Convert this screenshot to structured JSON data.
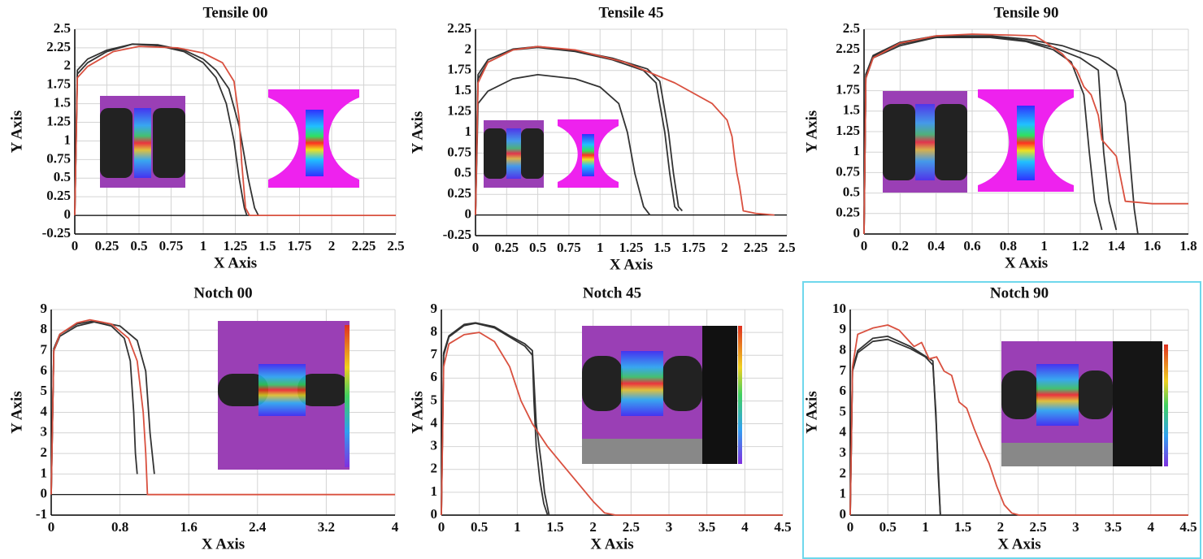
{
  "chart_data": [
    {
      "type": "line",
      "title": "Tensile 00",
      "x_label": "X Axis",
      "y_label": "Y Axis",
      "grid": true,
      "xlim": [
        0,
        2.5
      ],
      "ylim": [
        -0.25,
        2.5
      ],
      "xticks": [
        0,
        0.25,
        0.5,
        0.75,
        1,
        1.25,
        1.5,
        1.75,
        2,
        2.25,
        2.5
      ],
      "yticks": [
        -0.25,
        0,
        0.25,
        0.5,
        0.75,
        1,
        1.25,
        1.5,
        1.75,
        2,
        2.25,
        2.5
      ],
      "series": [
        {
          "color": "#333333",
          "x": [
            0,
            0.02,
            0.1,
            0.25,
            0.45,
            0.65,
            0.85,
            1.0,
            1.1,
            1.18,
            1.24,
            1.28,
            1.32,
            1.34
          ],
          "values": [
            0,
            1.9,
            2.05,
            2.2,
            2.3,
            2.28,
            2.2,
            2.05,
            1.85,
            1.5,
            1.0,
            0.5,
            0.1,
            0
          ]
        },
        {
          "color": "#333333",
          "x": [
            0,
            0.02,
            0.1,
            0.25,
            0.45,
            0.65,
            0.85,
            1.0,
            1.1,
            1.2,
            1.28,
            1.35,
            1.4,
            1.43
          ],
          "values": [
            0,
            1.95,
            2.1,
            2.22,
            2.3,
            2.29,
            2.22,
            2.1,
            1.95,
            1.7,
            1.2,
            0.5,
            0.1,
            0
          ]
        },
        {
          "color": "#d9503f",
          "x": [
            0,
            0.02,
            0.1,
            0.3,
            0.5,
            0.8,
            1.0,
            1.15,
            1.24,
            1.28,
            1.3,
            1.33,
            1.36,
            2.5
          ],
          "values": [
            0,
            1.85,
            2.0,
            2.2,
            2.27,
            2.25,
            2.18,
            2.05,
            1.8,
            1.3,
            0.7,
            0.1,
            0,
            0
          ]
        }
      ]
    },
    {
      "type": "line",
      "title": "Tensile 45",
      "x_label": "X Axis",
      "y_label": "Y Axis",
      "grid": true,
      "xlim": [
        0,
        2.5
      ],
      "ylim": [
        -0.25,
        2.25
      ],
      "xticks": [
        0,
        0.25,
        0.5,
        0.75,
        1,
        1.25,
        1.5,
        1.75,
        2,
        2.25,
        2.5
      ],
      "yticks": [
        -0.25,
        0,
        0.25,
        0.5,
        0.75,
        1,
        1.25,
        1.5,
        1.75,
        2,
        2.25
      ],
      "series": [
        {
          "color": "#333333",
          "x": [
            0,
            0.02,
            0.1,
            0.3,
            0.5,
            0.8,
            1.0,
            1.15,
            1.22,
            1.28,
            1.35,
            1.4
          ],
          "values": [
            0,
            1.35,
            1.5,
            1.65,
            1.7,
            1.65,
            1.55,
            1.35,
            1.0,
            0.5,
            0.1,
            0
          ]
        },
        {
          "color": "#333333",
          "x": [
            0,
            0.02,
            0.1,
            0.3,
            0.5,
            0.8,
            1.1,
            1.35,
            1.45,
            1.52,
            1.56,
            1.6,
            1.63
          ],
          "values": [
            0,
            1.65,
            1.85,
            2.0,
            2.03,
            1.98,
            1.88,
            1.75,
            1.6,
            1.0,
            0.5,
            0.1,
            0.05
          ]
        },
        {
          "color": "#333333",
          "x": [
            0,
            0.02,
            0.1,
            0.3,
            0.5,
            0.8,
            1.1,
            1.38,
            1.48,
            1.55,
            1.59,
            1.63,
            1.66
          ],
          "values": [
            0,
            1.7,
            1.88,
            2.01,
            2.04,
            1.99,
            1.9,
            1.77,
            1.62,
            1.0,
            0.5,
            0.1,
            0.05
          ]
        },
        {
          "color": "#d9503f",
          "x": [
            0,
            0.02,
            0.1,
            0.3,
            0.5,
            0.8,
            1.2,
            1.6,
            1.9,
            2.02,
            2.06,
            2.08,
            2.1,
            2.12,
            2.15,
            2.25,
            2.4
          ],
          "values": [
            0,
            1.6,
            1.85,
            2.0,
            2.04,
            2.0,
            1.85,
            1.6,
            1.35,
            1.15,
            0.95,
            0.7,
            0.5,
            0.35,
            0.05,
            0.02,
            0
          ]
        }
      ]
    },
    {
      "type": "line",
      "title": "Tensile 90",
      "x_label": "X Axis",
      "y_label": "Y Axis",
      "grid": true,
      "xlim": [
        0,
        1.8
      ],
      "ylim": [
        0,
        2.5
      ],
      "xticks": [
        0,
        0.2,
        0.4,
        0.6,
        0.8,
        1,
        1.2,
        1.4,
        1.6,
        1.8
      ],
      "yticks": [
        0,
        0.25,
        0.5,
        0.75,
        1,
        1.25,
        1.5,
        1.75,
        2,
        2.25,
        2.5
      ],
      "series": [
        {
          "color": "#333333",
          "x": [
            0,
            0.01,
            0.05,
            0.2,
            0.4,
            0.7,
            0.9,
            1.05,
            1.15,
            1.22,
            1.25,
            1.28,
            1.32
          ],
          "values": [
            0,
            1.9,
            2.15,
            2.3,
            2.4,
            2.4,
            2.35,
            2.25,
            2.1,
            1.7,
            1.0,
            0.4,
            0.05
          ]
        },
        {
          "color": "#333333",
          "x": [
            0,
            0.01,
            0.05,
            0.2,
            0.4,
            0.7,
            0.9,
            1.05,
            1.2,
            1.3,
            1.33,
            1.36,
            1.4
          ],
          "values": [
            0,
            1.92,
            2.17,
            2.32,
            2.41,
            2.41,
            2.36,
            2.28,
            2.15,
            2.0,
            1.0,
            0.4,
            0.05
          ]
        },
        {
          "color": "#333333",
          "x": [
            0,
            0.01,
            0.05,
            0.2,
            0.4,
            0.7,
            0.9,
            1.1,
            1.3,
            1.4,
            1.45,
            1.48,
            1.5,
            1.52
          ],
          "values": [
            0,
            1.95,
            2.18,
            2.34,
            2.42,
            2.42,
            2.38,
            2.3,
            2.15,
            2.0,
            1.6,
            0.8,
            0.3,
            0
          ]
        },
        {
          "color": "#d9503f",
          "x": [
            0,
            0.01,
            0.05,
            0.2,
            0.4,
            0.6,
            0.8,
            0.95,
            1.0,
            1.1,
            1.18,
            1.22,
            1.26,
            1.3,
            1.32,
            1.4,
            1.45,
            1.6,
            1.8
          ],
          "values": [
            0,
            1.9,
            2.15,
            2.33,
            2.42,
            2.44,
            2.43,
            2.42,
            2.35,
            2.2,
            2.0,
            1.8,
            1.7,
            1.45,
            1.15,
            0.95,
            0.4,
            0.37,
            0.37
          ]
        }
      ]
    },
    {
      "type": "line",
      "title": "Notch 00",
      "x_label": "X Axis",
      "y_label": "Y Axis",
      "grid": true,
      "xlim": [
        0,
        4
      ],
      "ylim": [
        -1,
        9
      ],
      "xticks": [
        0,
        0.8,
        1.6,
        2.4,
        3.2,
        4
      ],
      "yticks": [
        -1,
        0,
        1,
        2,
        3,
        4,
        5,
        6,
        7,
        8,
        9
      ],
      "series": [
        {
          "color": "#333333",
          "x": [
            0,
            0.03,
            0.1,
            0.3,
            0.5,
            0.7,
            0.85,
            0.92,
            0.96,
            0.98,
            1.0
          ],
          "values": [
            0,
            7,
            7.7,
            8.2,
            8.4,
            8.2,
            7.6,
            6.5,
            4,
            2,
            1
          ]
        },
        {
          "color": "#333333",
          "x": [
            0,
            0.03,
            0.1,
            0.3,
            0.5,
            0.8,
            1.0,
            1.1,
            1.15,
            1.2
          ],
          "values": [
            0,
            7.1,
            7.8,
            8.3,
            8.45,
            8.2,
            7.5,
            6,
            3,
            1
          ]
        },
        {
          "color": "#d9503f",
          "x": [
            0,
            0.03,
            0.1,
            0.3,
            0.45,
            0.7,
            0.9,
            1.0,
            1.07,
            1.1,
            1.12,
            4
          ],
          "values": [
            0,
            7,
            7.8,
            8.35,
            8.5,
            8.3,
            7.6,
            6.5,
            4,
            2,
            0,
            0
          ]
        }
      ]
    },
    {
      "type": "line",
      "title": "Notch 45",
      "x_label": "X Axis",
      "y_label": "Y Axis",
      "grid": true,
      "xlim": [
        0,
        4.5
      ],
      "ylim": [
        0,
        9
      ],
      "xticks": [
        0,
        0.5,
        1,
        1.5,
        2,
        2.5,
        3,
        3.5,
        4,
        4.5
      ],
      "yticks": [
        0,
        1,
        2,
        3,
        4,
        5,
        6,
        7,
        8,
        9
      ],
      "series": [
        {
          "color": "#333333",
          "x": [
            0,
            0.03,
            0.1,
            0.3,
            0.45,
            0.7,
            0.9,
            1.1,
            1.2,
            1.22,
            1.25,
            1.3,
            1.35,
            1.4
          ],
          "values": [
            0,
            7,
            7.8,
            8.3,
            8.4,
            8.2,
            7.8,
            7.4,
            7,
            5,
            3,
            1.5,
            0.5,
            0
          ]
        },
        {
          "color": "#333333",
          "x": [
            0,
            0.03,
            0.1,
            0.3,
            0.45,
            0.7,
            0.9,
            1.1,
            1.2,
            1.25,
            1.32,
            1.36,
            1.42
          ],
          "values": [
            0,
            7.1,
            7.85,
            8.35,
            8.42,
            8.25,
            7.85,
            7.5,
            7.2,
            4,
            2.2,
            1,
            0
          ]
        },
        {
          "color": "#d9503f",
          "x": [
            0,
            0.03,
            0.1,
            0.3,
            0.5,
            0.7,
            0.9,
            1.05,
            1.2,
            1.4,
            1.6,
            1.8,
            2.0,
            2.15,
            2.3,
            4.5
          ],
          "values": [
            0,
            6.5,
            7.5,
            7.9,
            8.0,
            7.6,
            6.5,
            5,
            4,
            3,
            2.2,
            1.4,
            0.6,
            0.1,
            0,
            0
          ]
        }
      ]
    },
    {
      "type": "line",
      "title": "Notch 90",
      "x_label": "X Axis",
      "y_label": "Y Axis",
      "grid": true,
      "xlim": [
        0,
        4.5
      ],
      "ylim": [
        0,
        10
      ],
      "xticks": [
        0,
        0.5,
        1,
        1.5,
        2,
        2.5,
        3,
        3.5,
        4,
        4.5
      ],
      "yticks": [
        0,
        1,
        2,
        3,
        4,
        5,
        6,
        7,
        8,
        9,
        10
      ],
      "series": [
        {
          "color": "#333333",
          "x": [
            0,
            0.03,
            0.1,
            0.3,
            0.5,
            0.8,
            1.0,
            1.1,
            1.14,
            1.17,
            1.2
          ],
          "values": [
            0,
            7,
            7.9,
            8.45,
            8.55,
            8.1,
            7.7,
            7.3,
            5,
            2,
            0
          ]
        },
        {
          "color": "#333333",
          "x": [
            0,
            0.03,
            0.1,
            0.3,
            0.5,
            0.8,
            1.1,
            1.15,
            1.2
          ],
          "values": [
            0,
            7.1,
            8.0,
            8.6,
            8.7,
            8.2,
            7.5,
            4,
            0
          ]
        },
        {
          "color": "#d9503f",
          "x": [
            0,
            0.03,
            0.1,
            0.3,
            0.5,
            0.65,
            0.75,
            0.85,
            0.95,
            1.05,
            1.15,
            1.25,
            1.35,
            1.45,
            1.55,
            1.65,
            1.75,
            1.85,
            1.95,
            2.05,
            2.15,
            2.25,
            4.5
          ],
          "values": [
            0,
            7.2,
            8.8,
            9.1,
            9.25,
            9.0,
            8.6,
            8.2,
            8.4,
            7.6,
            7.7,
            7.0,
            6.8,
            5.5,
            5.2,
            4.2,
            3.3,
            2.5,
            1.4,
            0.5,
            0.1,
            0,
            0
          ]
        }
      ]
    }
  ]
}
